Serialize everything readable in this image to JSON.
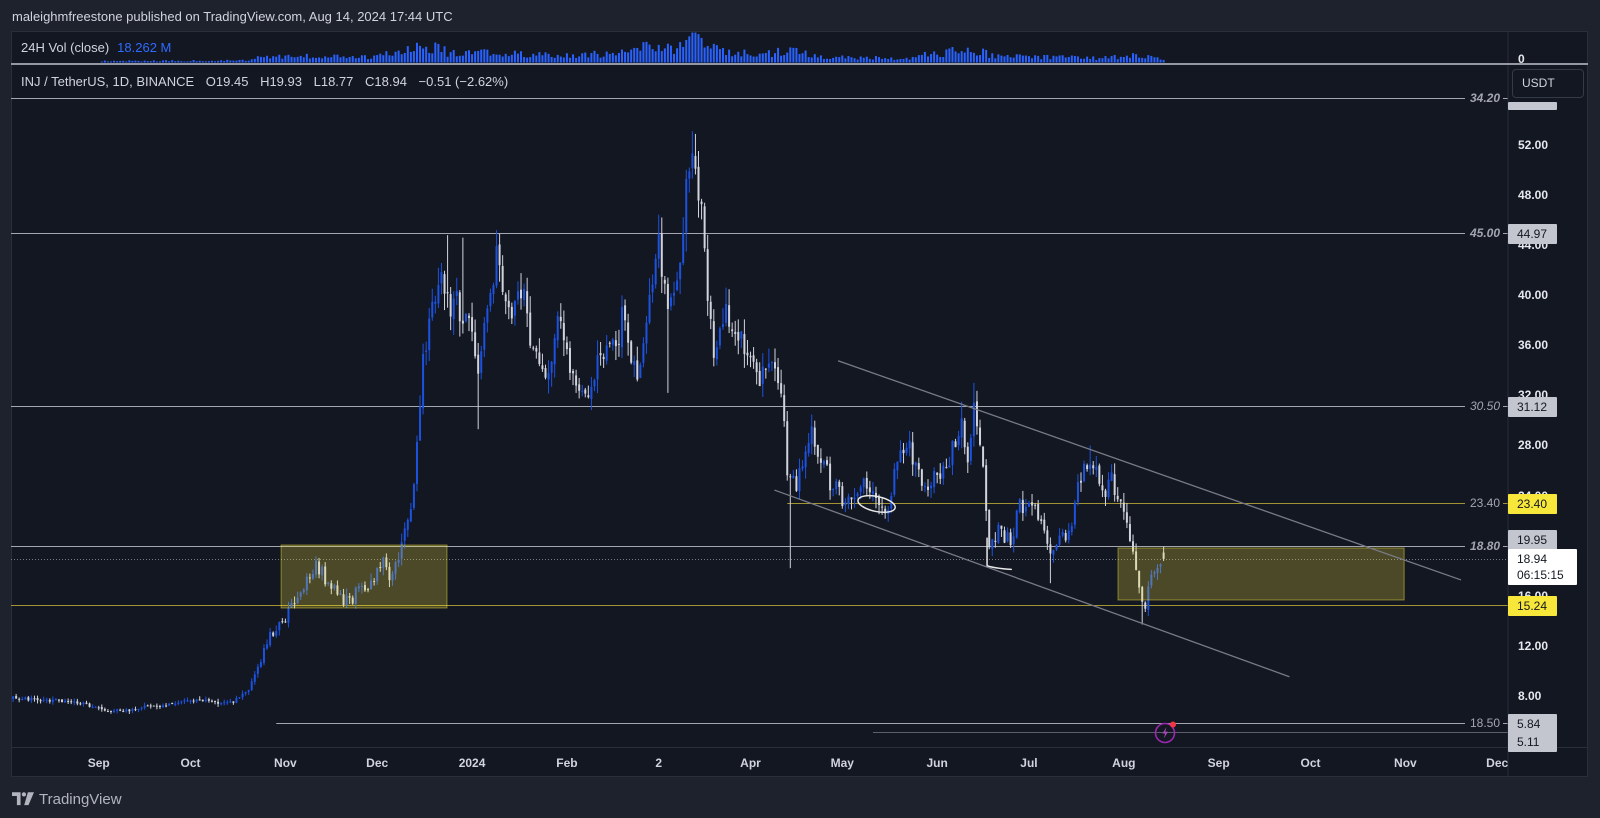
{
  "header": {
    "published": "maleighmfreestone published on TradingView.com, Aug 14, 2024 17:44 UTC"
  },
  "volume_pane": {
    "label": "24H Vol (close)",
    "value": "18.262 M",
    "axis_zero": "0"
  },
  "legend": {
    "symbol": "INJ / TetherUS, 1D, BINANCE",
    "open": "O19.45",
    "high": "H19.93",
    "low": "L18.77",
    "close": "C18.94",
    "change": "−0.51 (−2.62%)"
  },
  "currency_button": "USDT",
  "footer": {
    "brand": "TradingView"
  },
  "icons": {
    "alert": "lightning-alert-icon",
    "logo": "tradingview-logo-icon"
  },
  "colors": {
    "up": "#1c52e0",
    "down": "#d1d4dc",
    "volume": "#2962ff",
    "level_gray": "#a3a6af",
    "level_yellow": "#a39433",
    "level_dim": "#5d606b",
    "zone_fill": "rgba(255,235,59,0.24)",
    "zone_border": "rgba(255,235,59,0.45)",
    "trendline": "#787b86",
    "annotation": "#e8e8e8",
    "alert_ring": "#9c27b0",
    "alert_dot": "#f23645"
  },
  "chart_data": {
    "type": "candlestick",
    "title": "INJ / TetherUS, 1D, BINANCE",
    "interval": "1D",
    "candle_count": 378,
    "noise_seed": 20240814,
    "ylim": [
      0.5,
      60
    ],
    "y_ticks": [
      {
        "label": "52.00",
        "value": 52
      },
      {
        "label": "48.00",
        "value": 48
      },
      {
        "label": "44.00",
        "value": 44
      },
      {
        "label": "40.00",
        "value": 40
      },
      {
        "label": "36.00",
        "value": 36
      },
      {
        "label": "32.00",
        "value": 32
      },
      {
        "label": "28.00",
        "value": 28
      },
      {
        "label": "24.00",
        "value": 24
      },
      {
        "label": "16.00",
        "value": 16
      },
      {
        "label": "12.00",
        "value": 12
      },
      {
        "label": "8.00",
        "value": 8
      }
    ],
    "x_ticks": [
      {
        "label": "Sep",
        "day": 29
      },
      {
        "label": "Oct",
        "day": 59
      },
      {
        "label": "Nov",
        "day": 90
      },
      {
        "label": "Dec",
        "day": 120
      },
      {
        "label": "2024",
        "day": 151
      },
      {
        "label": "Feb",
        "day": 182
      },
      {
        "label": "2",
        "day": 212
      },
      {
        "label": "Apr",
        "day": 242
      },
      {
        "label": "May",
        "day": 272
      },
      {
        "label": "Jun",
        "day": 303
      },
      {
        "label": "Jul",
        "day": 333
      },
      {
        "label": "Aug",
        "day": 364
      },
      {
        "label": "Sep",
        "day": 395
      },
      {
        "label": "Oct",
        "day": 425
      },
      {
        "label": "Nov",
        "day": 456
      },
      {
        "label": "Dec",
        "day": 486
      }
    ],
    "close_anchors": [
      [
        0,
        7.9
      ],
      [
        8,
        7.7
      ],
      [
        17,
        7.6
      ],
      [
        25,
        7.3
      ],
      [
        30,
        6.9
      ],
      [
        37,
        6.8
      ],
      [
        44,
        7.1
      ],
      [
        50,
        7.2
      ],
      [
        57,
        7.6
      ],
      [
        63,
        7.7
      ],
      [
        68,
        7.4
      ],
      [
        73,
        7.5
      ],
      [
        78,
        8.6
      ],
      [
        82,
        10.8
      ],
      [
        85,
        13.0
      ],
      [
        90,
        14.3
      ],
      [
        95,
        16.7
      ],
      [
        100,
        18.4
      ],
      [
        105,
        16.7
      ],
      [
        110,
        15.5
      ],
      [
        116,
        16.7
      ],
      [
        122,
        18.4
      ],
      [
        125,
        17.5
      ],
      [
        128,
        19.6
      ],
      [
        132,
        24.5
      ],
      [
        135,
        34.2
      ],
      [
        138,
        39.9
      ],
      [
        141,
        42.4
      ],
      [
        143,
        39.1
      ],
      [
        148,
        39.1
      ],
      [
        153,
        34.2
      ],
      [
        157,
        39.1
      ],
      [
        159,
        42.8
      ],
      [
        163,
        38.3
      ],
      [
        167,
        40.8
      ],
      [
        170,
        35.9
      ],
      [
        175,
        33.4
      ],
      [
        179,
        38.3
      ],
      [
        183,
        33.4
      ],
      [
        188,
        31.6
      ],
      [
        192,
        35.1
      ],
      [
        197,
        35.9
      ],
      [
        201,
        38.7
      ],
      [
        205,
        33.0
      ],
      [
        208,
        37.5
      ],
      [
        212,
        44.4
      ],
      [
        215,
        40.0
      ],
      [
        218,
        41.6
      ],
      [
        221,
        48.5
      ],
      [
        223,
        52.2
      ],
      [
        225,
        48.5
      ],
      [
        227,
        43.2
      ],
      [
        230,
        35.9
      ],
      [
        234,
        39.1
      ],
      [
        238,
        37.5
      ],
      [
        242,
        35.1
      ],
      [
        245,
        32.2
      ],
      [
        248,
        35.1
      ],
      [
        252,
        32.6
      ],
      [
        254,
        25.3
      ],
      [
        257,
        24.5
      ],
      [
        262,
        29.4
      ],
      [
        265,
        27.3
      ],
      [
        268,
        25.3
      ],
      [
        273,
        23.6
      ],
      [
        278,
        25.3
      ],
      [
        283,
        23.6
      ],
      [
        286,
        22.0
      ],
      [
        290,
        26.9
      ],
      [
        293,
        28.5
      ],
      [
        298,
        25.3
      ],
      [
        303,
        25.3
      ],
      [
        308,
        27.7
      ],
      [
        311,
        30.6
      ],
      [
        313,
        26.9
      ],
      [
        315,
        31.0
      ],
      [
        318,
        25.7
      ],
      [
        320,
        20.4
      ],
      [
        323,
        21.2
      ],
      [
        327,
        20.4
      ],
      [
        330,
        23.2
      ],
      [
        334,
        23.2
      ],
      [
        338,
        21.2
      ],
      [
        340,
        19.6
      ],
      [
        344,
        20.4
      ],
      [
        347,
        22.0
      ],
      [
        349,
        25.3
      ],
      [
        353,
        27.3
      ],
      [
        355,
        26.1
      ],
      [
        358,
        24.1
      ],
      [
        360,
        25.7
      ],
      [
        363,
        22.8
      ],
      [
        366,
        20.4
      ],
      [
        368,
        17.9
      ],
      [
        371,
        15.1
      ],
      [
        373,
        17.5
      ],
      [
        376,
        18.9
      ],
      [
        377,
        18.94
      ]
    ],
    "wick_extremes": [
      [
        143,
        "h",
        44.8
      ],
      [
        148,
        "h",
        44.6
      ],
      [
        153,
        "l",
        29.3
      ],
      [
        159,
        "h",
        45.2
      ],
      [
        212,
        "h",
        46.3
      ],
      [
        215,
        "l",
        32.2
      ],
      [
        223,
        "h",
        53.1
      ],
      [
        255,
        "l",
        18.2
      ],
      [
        311,
        "h",
        31.5
      ],
      [
        315,
        "h",
        33.0
      ],
      [
        340,
        "l",
        17.0
      ],
      [
        353,
        "h",
        28.0
      ],
      [
        370,
        "l",
        13.7
      ]
    ],
    "last_candle": {
      "open": 19.45,
      "high": 19.93,
      "low": 18.77,
      "close": 18.94,
      "change": -0.51,
      "change_pct": -2.62
    },
    "volume_profile": [
      [
        30,
        5
      ],
      [
        77,
        7
      ],
      [
        82,
        18
      ],
      [
        95,
        22
      ],
      [
        121,
        22
      ],
      [
        130,
        50
      ],
      [
        136,
        64
      ],
      [
        143,
        36
      ],
      [
        160,
        32
      ],
      [
        180,
        25
      ],
      [
        199,
        32
      ],
      [
        210,
        72
      ],
      [
        216,
        43
      ],
      [
        222,
        100
      ],
      [
        225,
        79
      ],
      [
        232,
        43
      ],
      [
        245,
        25
      ],
      [
        254,
        43
      ],
      [
        265,
        21
      ],
      [
        291,
        14
      ],
      [
        310,
        43
      ],
      [
        315,
        43
      ],
      [
        323,
        21
      ],
      [
        350,
        18
      ],
      [
        356,
        14
      ],
      [
        369,
        29
      ],
      [
        377,
        11
      ]
    ],
    "current_price": {
      "price": 18.94,
      "box": "18.94",
      "countdown": "06:15:15"
    },
    "levels": [
      {
        "label": "34.20",
        "price": 55.75,
        "start_day": 0,
        "style": "gray",
        "italic": true,
        "bold": true,
        "box": ""
      },
      {
        "label": "45.00",
        "price": 44.97,
        "start_day": 0,
        "style": "gray",
        "italic": true,
        "bold": true,
        "box": "44.97"
      },
      {
        "label": "30.50",
        "price": 31.12,
        "start_day": 0,
        "style": "gray",
        "italic": true,
        "bold": false,
        "box": "31.12"
      },
      {
        "label": "23.40",
        "price": 23.4,
        "start_day": 254,
        "style": "yellow",
        "italic": false,
        "bold": false,
        "box": "23.40"
      },
      {
        "label": "18.80",
        "price": 19.95,
        "start_day": 0,
        "style": "gray",
        "italic": true,
        "bold": true,
        "box": "19.95",
        "box_shift": -7
      },
      {
        "label": "",
        "price": 15.24,
        "start_day": 0,
        "style": "yellow",
        "italic": false,
        "bold": false,
        "box": "15.24"
      },
      {
        "label": "18.50",
        "price": 5.84,
        "start_day": 87,
        "style": "gray",
        "italic": false,
        "bold": false,
        "box": "5.84"
      },
      {
        "label": "",
        "price": 5.11,
        "start_day": 282,
        "style": "dim",
        "italic": false,
        "bold": false,
        "box": "5.11",
        "box_shift": 9
      }
    ],
    "zones": [
      {
        "from_day": 88.6,
        "to_day": 142.8,
        "top": 20.05,
        "bottom": 15.02
      },
      {
        "from_day": 362.1,
        "to_day": 455.6,
        "top": 19.81,
        "bottom": 15.66
      }
    ],
    "trendlines": [
      {
        "name": "channel-upper",
        "from": [
          270.6,
          34.77
        ],
        "to": [
          474.2,
          17.26
        ]
      },
      {
        "name": "channel-lower",
        "from": [
          249.8,
          24.44
        ],
        "to": [
          418.1,
          9.53
        ]
      }
    ],
    "annotations": [
      {
        "type": "ellipse",
        "center": [
          283.2,
          23.33
        ],
        "rx_days": 6.2,
        "ry_price": 0.6,
        "rotate": 12
      },
      {
        "type": "brush",
        "points": [
          [
            319.3,
            20.6
          ],
          [
            319.3,
            18.4
          ],
          [
            321.5,
            18.2
          ],
          [
            327.2,
            18.1
          ]
        ]
      }
    ],
    "alert_marker": {
      "day": 377.3,
      "price": 5.02
    }
  }
}
